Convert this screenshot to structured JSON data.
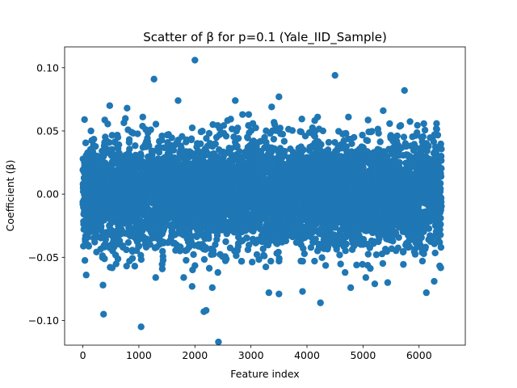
{
  "chart_data": {
    "type": "scatter",
    "title": "Scatter of β for p=0.1 (Yale_IID_Sample)",
    "xlabel": "Feature index",
    "ylabel": "Coefficient (β)",
    "xlim": [
      -325,
      6825
    ],
    "ylim": [
      -0.1195,
      0.1165
    ],
    "xticks": [
      0,
      1000,
      2000,
      3000,
      4000,
      5000,
      6000
    ],
    "xtick_labels": [
      "0",
      "1000",
      "2000",
      "3000",
      "4000",
      "5000",
      "6000"
    ],
    "yticks": [
      -0.1,
      -0.05,
      0.0,
      0.05,
      0.1
    ],
    "ytick_labels": [
      "−0.10",
      "−0.05",
      "0.00",
      "0.05",
      "0.10"
    ],
    "grid": false,
    "marker_color": "#1f77b4",
    "n_points": 6400,
    "distribution": {
      "mean": 0.0,
      "std_approx": 0.02,
      "x_range": [
        0,
        6399
      ]
    },
    "series": [
      {
        "values_note_excluded": false,
        "outliers": [
          {
            "x": 2000,
            "y": 0.106
          },
          {
            "x": 1270,
            "y": 0.091
          },
          {
            "x": 4500,
            "y": 0.094
          },
          {
            "x": 5740,
            "y": 0.082
          },
          {
            "x": 3500,
            "y": 0.077
          },
          {
            "x": 2720,
            "y": 0.074
          },
          {
            "x": 1700,
            "y": 0.074
          },
          {
            "x": 480,
            "y": 0.07
          },
          {
            "x": 3370,
            "y": 0.069
          },
          {
            "x": 790,
            "y": 0.068
          },
          {
            "x": 5360,
            "y": 0.066
          },
          {
            "x": 2850,
            "y": 0.063
          },
          {
            "x": 1070,
            "y": 0.061
          },
          {
            "x": 2960,
            "y": 0.063
          },
          {
            "x": 4190,
            "y": 0.061
          },
          {
            "x": 30,
            "y": 0.059
          },
          {
            "x": 4740,
            "y": 0.061
          },
          {
            "x": 1040,
            "y": -0.105
          },
          {
            "x": 2420,
            "y": -0.117
          },
          {
            "x": 370,
            "y": -0.095
          },
          {
            "x": 2160,
            "y": -0.093
          },
          {
            "x": 2200,
            "y": -0.092
          },
          {
            "x": 4240,
            "y": -0.086
          },
          {
            "x": 3500,
            "y": -0.079
          },
          {
            "x": 3320,
            "y": -0.078
          },
          {
            "x": 6130,
            "y": -0.078
          },
          {
            "x": 3920,
            "y": -0.077
          },
          {
            "x": 2310,
            "y": -0.074
          },
          {
            "x": 1950,
            "y": -0.073
          },
          {
            "x": 360,
            "y": -0.072
          },
          {
            "x": 4780,
            "y": -0.074
          },
          {
            "x": 5210,
            "y": -0.071
          },
          {
            "x": 5440,
            "y": -0.07
          },
          {
            "x": 6270,
            "y": -0.069
          },
          {
            "x": 1300,
            "y": -0.066
          },
          {
            "x": 60,
            "y": -0.064
          },
          {
            "x": 1800,
            "y": -0.066
          },
          {
            "x": 5050,
            "y": -0.066
          },
          {
            "x": 2410,
            "y": -0.062
          },
          {
            "x": 4680,
            "y": -0.062
          }
        ]
      }
    ]
  }
}
